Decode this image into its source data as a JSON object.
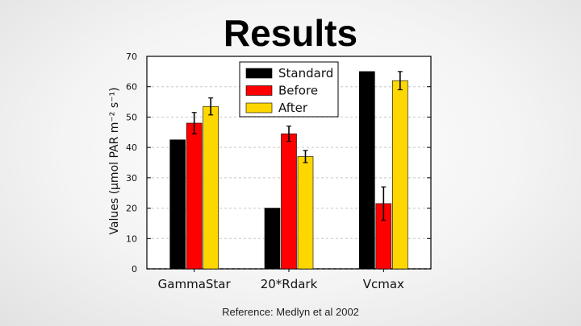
{
  "slide": {
    "title": "Results",
    "footer": "Reference: Medlyn et al 2002"
  },
  "chart_data": {
    "type": "bar",
    "title": "",
    "xlabel": "",
    "ylabel": "Values (μmol PAR m⁻² s⁻¹)",
    "ylim": [
      0,
      70
    ],
    "yticks": [
      0,
      10,
      20,
      30,
      40,
      50,
      60,
      70
    ],
    "grid": "y-dashed",
    "legend_position": "top-center",
    "categories": [
      "GammaStar",
      "20*Rdark",
      "Vcmax"
    ],
    "series": [
      {
        "name": "Standard",
        "color": "#000000",
        "values": [
          42.5,
          20,
          65
        ],
        "errors": [
          0,
          0,
          0
        ]
      },
      {
        "name": "Before",
        "color": "#ff0000",
        "values": [
          48,
          44.5,
          21.5
        ],
        "errors": [
          3.5,
          2.5,
          5.5
        ]
      },
      {
        "name": "After",
        "color": "#ffd700",
        "values": [
          53.5,
          37,
          62
        ],
        "errors": [
          2.8,
          2,
          3
        ]
      }
    ]
  }
}
